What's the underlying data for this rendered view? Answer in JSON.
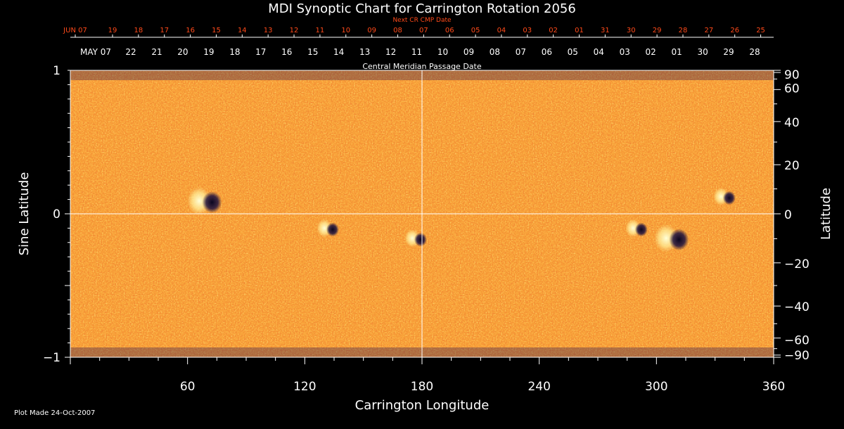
{
  "chart_data": {
    "type": "heatmap",
    "title": "MDI Synoptic Chart for Carrington Rotation 2056",
    "xlabel": "Carrington Longitude",
    "ylabel_left": "Sine Latitude",
    "ylabel_right": "Latitude",
    "xlim": [
      0,
      360
    ],
    "ylim": [
      -1,
      1
    ],
    "x_ticks": [
      "60",
      "120",
      "180",
      "240",
      "300",
      "360"
    ],
    "y_left_ticks": [
      "1",
      "0",
      "−1"
    ],
    "y_right_ticks": [
      "90",
      "60",
      "40",
      "20",
      "0",
      "−20",
      "−40",
      "−60",
      "−90"
    ],
    "next_cr_label": "Next CR CMP Date",
    "next_cr_dates": [
      "JUN 07",
      "19",
      "18",
      "17",
      "16",
      "15",
      "14",
      "13",
      "12",
      "11",
      "10",
      "09",
      "08",
      "07",
      "06",
      "05",
      "04",
      "03",
      "02",
      "01",
      "31",
      "30",
      "29",
      "28",
      "27",
      "26",
      "25"
    ],
    "cmp_label": "Central Meridian Passage Date",
    "cmp_dates": [
      "MAY 07",
      "22",
      "21",
      "20",
      "19",
      "18",
      "17",
      "16",
      "15",
      "14",
      "13",
      "12",
      "11",
      "10",
      "09",
      "08",
      "07",
      "06",
      "05",
      "04",
      "03",
      "02",
      "01",
      "30",
      "29",
      "28"
    ],
    "grid_lines": {
      "vertical_at_longitude": 180,
      "horizontal_at_sine_latitude": 0
    },
    "colors": {
      "background": "#e8501a",
      "positive": "#ffffc0",
      "negative": "#20103a",
      "grid": "#ffffff",
      "next_cr_text": "#ff4a1a"
    },
    "active_regions": [
      {
        "longitude": 69,
        "sine_latitude": 0.09,
        "polarity": "bipolar"
      },
      {
        "longitude": 132,
        "sine_latitude": -0.1,
        "polarity": "bipolar"
      },
      {
        "longitude": 177,
        "sine_latitude": -0.17,
        "polarity": "bipolar"
      },
      {
        "longitude": 290,
        "sine_latitude": -0.1,
        "polarity": "bipolar"
      },
      {
        "longitude": 308,
        "sine_latitude": -0.17,
        "polarity": "bipolar"
      },
      {
        "longitude": 335,
        "sine_latitude": 0.12,
        "polarity": "bipolar"
      }
    ]
  },
  "footer": {
    "plot_made": "Plot Made 24-Oct-2007"
  }
}
